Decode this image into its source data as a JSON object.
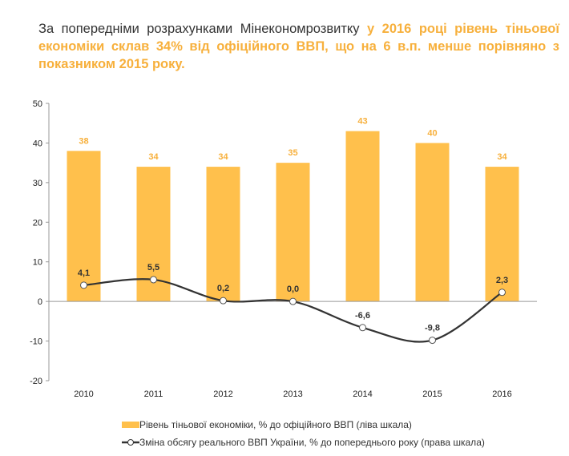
{
  "intro": {
    "plain": "За попередніми розрахунками Мінекономрозвитку ",
    "highlight": "у 2016 році рівень тіньової економіки склав 34% від офіційного ВВП, що на 6 в.п. менше порівняно з показником 2015 року."
  },
  "chart_data": {
    "type": "bar+line",
    "categories": [
      "2010",
      "2011",
      "2012",
      "2013",
      "2014",
      "2015",
      "2016"
    ],
    "ylim": [
      -20,
      50
    ],
    "yticks": [
      -20,
      -10,
      0,
      10,
      20,
      30,
      40,
      50
    ],
    "grid": false,
    "legend_position": "bottom",
    "series": [
      {
        "name": "Рівень тіньової економіки, % до офіційного ВВП (ліва шкала)",
        "type": "bar",
        "color": "#FFC04C",
        "values": [
          38,
          34,
          34,
          35,
          43,
          40,
          34
        ],
        "labels": [
          "38",
          "34",
          "34",
          "35",
          "43",
          "40",
          "34"
        ]
      },
      {
        "name": "Зміна обсягу реального ВВП України, % до попереднього року (права шкала)",
        "type": "line",
        "color": "#333333",
        "values": [
          4.1,
          5.5,
          0.2,
          0.0,
          -6.6,
          -9.8,
          2.3
        ],
        "labels": [
          "4,1",
          "5,5",
          "0,2",
          "0,0",
          "-6,6",
          "-9,8",
          "2,3"
        ]
      }
    ]
  }
}
